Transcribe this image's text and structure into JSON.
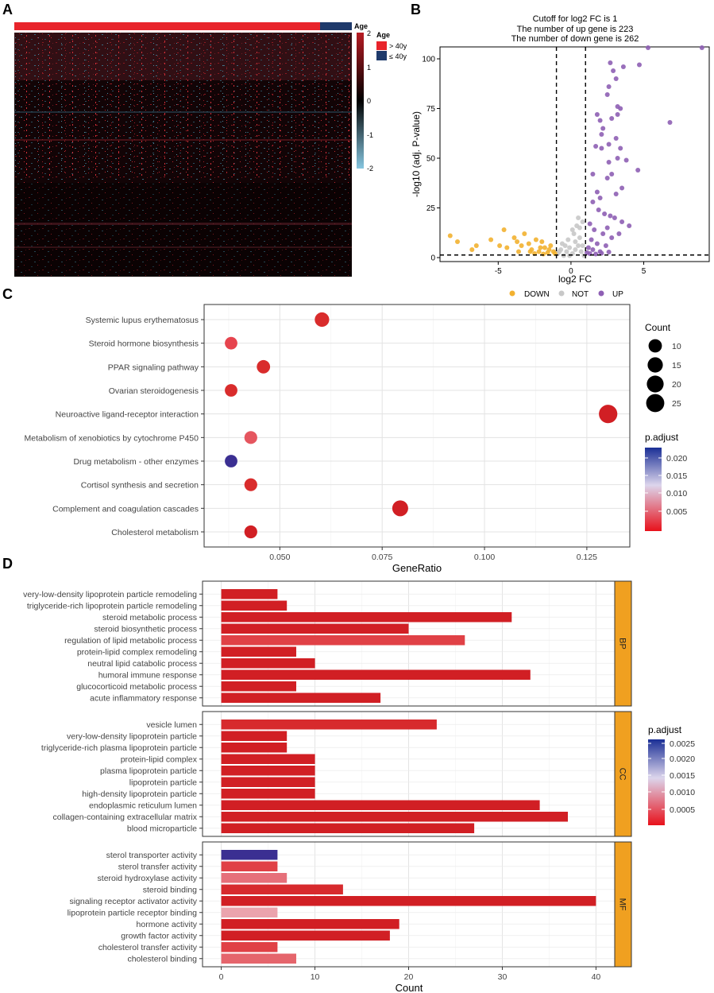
{
  "panel_labels": {
    "a": "A",
    "b": "B",
    "c": "C",
    "d": "D"
  },
  "chart_data": [
    {
      "panel": "A",
      "type": "heatmap",
      "annotation_title": "Age",
      "legend_title": "Age",
      "groups": [
        {
          "label": "> 40y",
          "color": "#e8242b"
        },
        {
          "label": "≤ 40y",
          "color": "#1f3a6b"
        }
      ],
      "group_split_fraction": 0.905,
      "color_scale": {
        "low": "#86c6e0",
        "mid": "#000000",
        "high": "#b71c24"
      },
      "scale_ticks": [
        "2",
        "1",
        "0",
        "-1",
        "-2"
      ]
    },
    {
      "panel": "B",
      "type": "scatter",
      "title_lines": [
        "Cutoff for log2 FC is 1",
        "The number of up gene is 223",
        "The number of down gene is 262"
      ],
      "xlabel": "log2 FC",
      "ylabel": "-log10 (adj. P-value)",
      "xlim": [
        -9,
        9.5
      ],
      "ylim": [
        -2,
        106
      ],
      "xticks": [
        -5,
        0,
        5
      ],
      "yticks": [
        0,
        25,
        50,
        75,
        100
      ],
      "cutoff_x": [
        -1,
        1
      ],
      "cutoff_y": 1.3,
      "legend": [
        {
          "label": "DOWN",
          "color": "#f2b130"
        },
        {
          "label": "NOT",
          "color": "#c8c8c8"
        },
        {
          "label": "UP",
          "color": "#8e5fb4"
        }
      ],
      "up_points": [
        [
          5.3,
          106
        ],
        [
          9,
          106
        ],
        [
          2.7,
          98
        ],
        [
          3.6,
          96
        ],
        [
          4.7,
          97
        ],
        [
          2.9,
          94
        ],
        [
          3.1,
          90
        ],
        [
          2.6,
          86
        ],
        [
          2.5,
          82
        ],
        [
          3.2,
          76
        ],
        [
          3.4,
          75
        ],
        [
          3.2,
          72
        ],
        [
          2.8,
          70
        ],
        [
          6.8,
          68
        ],
        [
          1.8,
          72
        ],
        [
          2,
          69
        ],
        [
          2.2,
          65
        ],
        [
          2.1,
          62
        ],
        [
          3.1,
          60
        ],
        [
          2.6,
          57
        ],
        [
          2.1,
          55
        ],
        [
          1.7,
          56
        ],
        [
          3.4,
          55
        ],
        [
          3.8,
          49
        ],
        [
          3.2,
          50
        ],
        [
          2.6,
          48
        ],
        [
          4.6,
          44
        ],
        [
          2.8,
          42
        ],
        [
          2.5,
          40
        ],
        [
          1.5,
          42
        ],
        [
          3.5,
          35
        ],
        [
          3.1,
          32
        ],
        [
          1.8,
          33
        ],
        [
          2,
          30
        ],
        [
          1.5,
          28
        ],
        [
          1.9,
          24
        ],
        [
          2.3,
          22
        ],
        [
          2.7,
          21
        ],
        [
          3,
          20
        ],
        [
          3.5,
          18
        ],
        [
          4,
          16
        ],
        [
          2.5,
          15
        ],
        [
          1.3,
          17
        ],
        [
          1.6,
          14
        ],
        [
          2.2,
          12
        ],
        [
          2.8,
          10
        ],
        [
          3.3,
          12
        ],
        [
          1.4,
          9
        ],
        [
          1.8,
          7
        ],
        [
          2.4,
          6
        ],
        [
          1.2,
          5
        ],
        [
          1.5,
          4
        ],
        [
          2,
          3
        ],
        [
          1.1,
          2.5
        ],
        [
          1.3,
          2
        ],
        [
          1.7,
          1.8
        ],
        [
          2.1,
          2.2
        ],
        [
          2.6,
          2.8
        ]
      ],
      "down_points": [
        [
          -8.3,
          11
        ],
        [
          -7.8,
          8
        ],
        [
          -6.5,
          6
        ],
        [
          -6.8,
          4
        ],
        [
          -5.5,
          9
        ],
        [
          -4.6,
          14
        ],
        [
          -4.4,
          5
        ],
        [
          -3.9,
          10
        ],
        [
          -3.6,
          3
        ],
        [
          -3.2,
          12
        ],
        [
          -2.9,
          7
        ],
        [
          -2.7,
          4
        ],
        [
          -2.4,
          9
        ],
        [
          -2.2,
          3
        ],
        [
          -2,
          8
        ],
        [
          -1.8,
          5
        ],
        [
          -1.6,
          2.5
        ],
        [
          -1.4,
          6
        ],
        [
          -1.2,
          3
        ],
        [
          -3.4,
          6
        ],
        [
          -2.5,
          2
        ],
        [
          -1.9,
          1.8
        ],
        [
          -1.5,
          4
        ],
        [
          -1.1,
          2
        ],
        [
          -4.9,
          6
        ],
        [
          -3.7,
          8
        ],
        [
          -2.8,
          3
        ],
        [
          -2.1,
          5
        ]
      ],
      "not_points": [
        [
          -0.9,
          2
        ],
        [
          -0.7,
          4
        ],
        [
          -0.5,
          1
        ],
        [
          -0.3,
          3
        ],
        [
          -0.1,
          5
        ],
        [
          0.1,
          2
        ],
        [
          0.3,
          4
        ],
        [
          0.5,
          6
        ],
        [
          0.7,
          3
        ],
        [
          0.9,
          1
        ],
        [
          -0.6,
          7
        ],
        [
          -0.2,
          9
        ],
        [
          0.2,
          12
        ],
        [
          0.4,
          16
        ],
        [
          0.6,
          10
        ],
        [
          0.8,
          18
        ],
        [
          0.5,
          20
        ],
        [
          0.3,
          8
        ],
        [
          -0.4,
          6
        ],
        [
          -0.8,
          3
        ],
        [
          0.1,
          14
        ],
        [
          0.6,
          15
        ],
        [
          -0.1,
          1
        ],
        [
          0.8,
          6
        ]
      ]
    },
    {
      "panel": "C",
      "type": "scatter",
      "xlabel": "GeneRatio",
      "xlim": [
        0.0315,
        0.1355
      ],
      "xticks": [
        0.05,
        0.075,
        0.1,
        0.125
      ],
      "xtick_labels": [
        "0.050",
        "0.075",
        "0.100",
        "0.125"
      ],
      "categories": [
        "Systemic lupus erythematosus",
        "Steroid hormone biosynthesis",
        "PPAR signaling pathway",
        "Ovarian steroidogenesis",
        "Neuroactive ligand-receptor interaction",
        "Metabolism of xenobiotics by cytochrome P450",
        "Drug metabolism - other enzymes",
        "Cortisol synthesis and secretion",
        "Complement and coagulation cascades",
        "Cholesterol metabolism"
      ],
      "gene_ratio": [
        0.0603,
        0.0381,
        0.046,
        0.0381,
        0.1302,
        0.0429,
        0.0381,
        0.0429,
        0.0794,
        0.0429
      ],
      "count": [
        13,
        8,
        10,
        8,
        26,
        9,
        8,
        9,
        17,
        9
      ],
      "colors": [
        "#d92c2c",
        "#e6444e",
        "#d92c2c",
        "#d92c2c",
        "#d11f24",
        "#e5565f",
        "#3b2f92",
        "#d92c2c",
        "#d11f24",
        "#d11f24"
      ],
      "size_legend_title": "Count",
      "size_legend": [
        10,
        15,
        20,
        25
      ],
      "color_legend_title": "p.adjust",
      "color_legend_ticks": [
        "0.020",
        "0.015",
        "0.010",
        "0.005"
      ]
    },
    {
      "panel": "D",
      "type": "bar",
      "xlabel": "Count",
      "xlim": [
        -2,
        42
      ],
      "xticks": [
        0,
        10,
        20,
        30,
        40
      ],
      "facets": [
        {
          "label": "BP",
          "categories": [
            "very-low-density lipoprotein particle remodeling",
            "triglyceride-rich lipoprotein particle remodeling",
            "steroid metabolic process",
            "steroid biosynthetic process",
            "regulation of lipid metabolic process",
            "protein-lipid complex remodeling",
            "neutral lipid catabolic process",
            "humoral immune response",
            "glucocorticoid metabolic process",
            "acute inflammatory response"
          ],
          "values": [
            6,
            7,
            31,
            20,
            26,
            8,
            10,
            33,
            8,
            17
          ],
          "colors": [
            "#d11f24",
            "#d11f24",
            "#d11f24",
            "#d11f24",
            "#e04146",
            "#d11f24",
            "#d11f24",
            "#d11f24",
            "#d11f24",
            "#d11f24"
          ]
        },
        {
          "label": "CC",
          "categories": [
            "vesicle lumen",
            "very-low-density lipoprotein particle",
            "triglyceride-rich plasma lipoprotein particle",
            "protein-lipid complex",
            "plasma lipoprotein particle",
            "lipoprotein particle",
            "high-density lipoprotein particle",
            "endoplasmic reticulum lumen",
            "collagen-containing extracellular matrix",
            "blood microparticle"
          ],
          "values": [
            23,
            7,
            7,
            10,
            10,
            10,
            10,
            34,
            37,
            27
          ],
          "colors": [
            "#d72a2d",
            "#d11f24",
            "#d11f24",
            "#d11f24",
            "#d11f24",
            "#d11f24",
            "#d11f24",
            "#d11f24",
            "#d11f24",
            "#d11f24"
          ]
        },
        {
          "label": "MF",
          "categories": [
            "sterol transporter activity",
            "sterol transfer activity",
            "steroid hydroxylase activity",
            "steroid binding",
            "signaling receptor activator activity",
            "lipoprotein particle receptor binding",
            "hormone activity",
            "growth factor activity",
            "cholesterol transfer activity",
            "cholesterol binding"
          ],
          "values": [
            6,
            6,
            7,
            13,
            40,
            6,
            19,
            18,
            6,
            8
          ],
          "colors": [
            "#3b2f92",
            "#e04146",
            "#e6707a",
            "#d72a2d",
            "#d11f24",
            "#eba3ad",
            "#d11f24",
            "#d11f24",
            "#e04146",
            "#e5656c"
          ]
        }
      ],
      "color_legend_title": "p.adjust",
      "color_legend_ticks": [
        "0.0025",
        "0.0020",
        "0.0015",
        "0.0010",
        "0.0005"
      ]
    }
  ]
}
